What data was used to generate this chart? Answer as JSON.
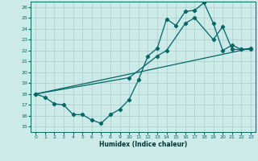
{
  "xlabel": "Humidex (Indice chaleur)",
  "background_color": "#cceae7",
  "grid_color": "#aacccc",
  "line_color": "#006666",
  "xlim": [
    -0.5,
    23.5
  ],
  "ylim": [
    14.5,
    26.5
  ],
  "yticks": [
    15,
    16,
    17,
    18,
    19,
    20,
    21,
    22,
    23,
    24,
    25,
    26
  ],
  "xticks": [
    0,
    1,
    2,
    3,
    4,
    5,
    6,
    7,
    8,
    9,
    10,
    11,
    12,
    13,
    14,
    15,
    16,
    17,
    18,
    19,
    20,
    21,
    22,
    23
  ],
  "series1_x": [
    0,
    1,
    2,
    3,
    4,
    5,
    6,
    7,
    8,
    9,
    10,
    11,
    12,
    13,
    14,
    15,
    16,
    17,
    18,
    19,
    20,
    21,
    22,
    23
  ],
  "series1_y": [
    18.0,
    17.7,
    17.1,
    17.0,
    16.1,
    16.1,
    15.6,
    15.3,
    16.1,
    16.6,
    17.5,
    19.3,
    21.5,
    22.2,
    24.9,
    24.3,
    25.6,
    25.7,
    26.4,
    24.5,
    22.0,
    22.5,
    22.1,
    22.1
  ],
  "series2_x": [
    0,
    23
  ],
  "series2_y": [
    18.0,
    22.2
  ],
  "series3_x": [
    0,
    10,
    13,
    14,
    16,
    17,
    19,
    20,
    21,
    22,
    23
  ],
  "series3_y": [
    18.0,
    19.5,
    21.5,
    22.0,
    24.5,
    25.0,
    23.0,
    24.2,
    22.1,
    22.1,
    22.2
  ]
}
